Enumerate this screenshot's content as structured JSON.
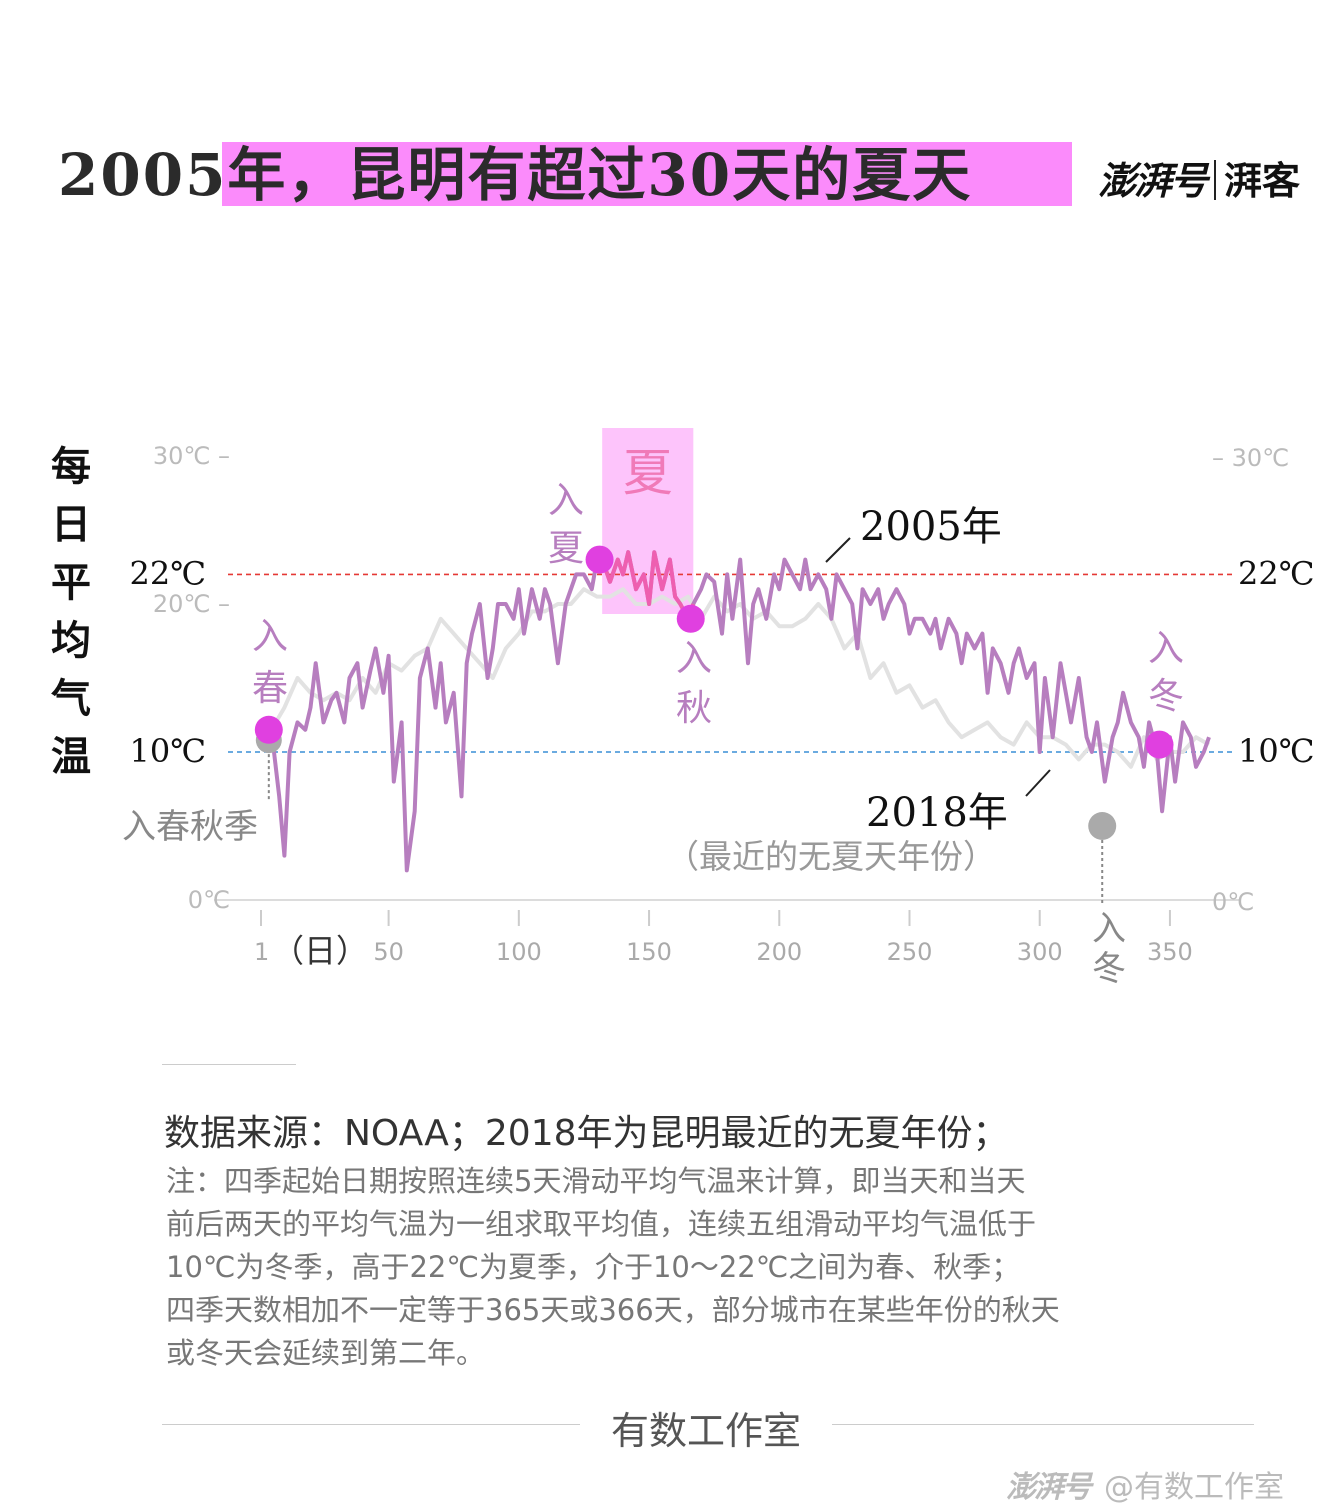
{
  "header": {
    "title": "2005年，昆明有超过30天的夏天",
    "brand_logo": "澎湃号",
    "brand_sub": "湃客"
  },
  "y_axis_label_chars": [
    "每",
    "日",
    "平",
    "均",
    "气",
    "温"
  ],
  "chart_data": {
    "type": "line",
    "title": "2005年，昆明有超过30天的夏天",
    "ylabel": "每日平均气温",
    "xlabel": "（日）",
    "xlim": [
      1,
      365
    ],
    "ylim": [
      0,
      30
    ],
    "x_ticks": [
      1,
      50,
      100,
      150,
      200,
      250,
      300,
      350
    ],
    "x_tick_labels": [
      "1",
      "50",
      "100",
      "150",
      "200",
      "250",
      "300",
      "350"
    ],
    "x_first_tick_suffix": "（日）",
    "y_ticks_left": [
      {
        "value": 30,
        "label": "30℃ –"
      },
      {
        "value": 20,
        "label": "20℃ –"
      },
      {
        "value": 0,
        "label": "0℃"
      }
    ],
    "y_ticks_right": [
      {
        "value": 30,
        "label": "– 30℃"
      },
      {
        "value": 0,
        "label": "0℃"
      }
    ],
    "thresholds": [
      {
        "value": 22,
        "label_left": "22℃",
        "label_right": "22℃",
        "color": "#e53935"
      },
      {
        "value": 10,
        "label_left": "10℃",
        "label_right": "10℃",
        "color": "#3a8fd6"
      }
    ],
    "summer_band": {
      "start": 132,
      "end": 167,
      "label": "夏",
      "color": "#fdc4fb"
    },
    "series": [
      {
        "name": "2018年",
        "sub_label": "（最近的无夏天年份）",
        "color": "#e2e2e2",
        "x": [
          1,
          5,
          10,
          15,
          20,
          25,
          30,
          35,
          40,
          45,
          50,
          55,
          60,
          65,
          70,
          75,
          80,
          85,
          90,
          95,
          100,
          105,
          110,
          115,
          120,
          125,
          130,
          135,
          140,
          145,
          150,
          155,
          160,
          165,
          170,
          175,
          180,
          185,
          190,
          195,
          200,
          205,
          210,
          215,
          220,
          225,
          230,
          235,
          240,
          245,
          250,
          255,
          260,
          265,
          270,
          275,
          280,
          285,
          290,
          295,
          300,
          305,
          310,
          315,
          320,
          325,
          330,
          335,
          340,
          345,
          350,
          355,
          360,
          365
        ],
        "y": [
          10.5,
          11.5,
          13,
          15,
          14,
          13.5,
          14,
          13.5,
          15,
          14,
          16,
          15.5,
          16.5,
          17,
          19,
          18,
          17,
          16,
          15,
          17,
          18,
          19.5,
          19.5,
          20,
          20,
          21,
          20.5,
          20.5,
          21,
          20,
          20,
          20.5,
          20,
          20.5,
          19,
          20.5,
          19.5,
          20,
          19,
          19.5,
          18.5,
          18.5,
          19,
          20,
          19,
          17,
          18,
          15,
          16,
          14,
          14.5,
          13,
          13.5,
          12,
          11,
          11.5,
          12,
          11,
          10.5,
          12,
          11,
          11,
          10.5,
          9.5,
          10.5,
          10.5,
          10,
          9,
          11,
          9.5,
          10,
          10,
          11,
          10.5
        ]
      },
      {
        "name": "2005年",
        "color": "#b77ebf",
        "x": [
          1,
          3,
          5,
          8,
          10,
          12,
          15,
          18,
          20,
          22,
          25,
          28,
          30,
          33,
          35,
          38,
          40,
          43,
          45,
          48,
          50,
          52,
          55,
          57,
          60,
          62,
          65,
          68,
          70,
          72,
          75,
          78,
          80,
          82,
          85,
          88,
          90,
          92,
          95,
          98,
          100,
          102,
          105,
          108,
          110,
          112,
          115,
          118,
          120,
          122,
          125,
          128,
          130,
          132,
          135,
          138,
          140,
          142,
          145,
          148,
          150,
          152,
          155,
          158,
          160,
          162,
          165,
          167,
          170,
          172,
          175,
          178,
          180,
          182,
          185,
          188,
          190,
          192,
          195,
          198,
          200,
          202,
          205,
          208,
          210,
          212,
          215,
          218,
          220,
          222,
          225,
          228,
          230,
          232,
          235,
          238,
          240,
          242,
          245,
          248,
          250,
          252,
          255,
          258,
          260,
          262,
          265,
          268,
          270,
          272,
          275,
          278,
          280,
          282,
          285,
          288,
          290,
          292,
          295,
          298,
          300,
          302,
          305,
          308,
          310,
          312,
          315,
          318,
          320,
          322,
          325,
          328,
          330,
          332,
          335,
          338,
          340,
          342,
          345,
          347,
          350,
          352,
          355,
          358,
          360,
          363,
          365
        ],
        "y": [
          11,
          10.5,
          11.5,
          7,
          3,
          10,
          12,
          11.5,
          13,
          16,
          12,
          13.5,
          14,
          12,
          15,
          16,
          13,
          15.5,
          17,
          14,
          16.5,
          8,
          12,
          2,
          6,
          15,
          17,
          13,
          16,
          12,
          14,
          7,
          16,
          18,
          20,
          15,
          17,
          20,
          20,
          19,
          21,
          18,
          21,
          19,
          21,
          20,
          16,
          20,
          21,
          22,
          22,
          21,
          23,
          23,
          21.5,
          23,
          22,
          23.5,
          21,
          22,
          20,
          23.5,
          21,
          23,
          20.5,
          20,
          19,
          20,
          21,
          22,
          21.5,
          18,
          22,
          19,
          23,
          16,
          20,
          21,
          19,
          22,
          21,
          23,
          22,
          21,
          23,
          21,
          22,
          21,
          19,
          22,
          21,
          20,
          17,
          21,
          20,
          21,
          19,
          20,
          21,
          20,
          18,
          19,
          19,
          18,
          19,
          17,
          19,
          18,
          16,
          18,
          17,
          18,
          14,
          17,
          16,
          14,
          16,
          17,
          15,
          16,
          10,
          15,
          11,
          16,
          14,
          12,
          15,
          11,
          10,
          12,
          8,
          11,
          12,
          14,
          12,
          11,
          9,
          12,
          10,
          6,
          11,
          8,
          12,
          11,
          9,
          10,
          11
        ]
      }
    ],
    "markers": [
      {
        "x": 4,
        "y": 11.5,
        "label": "入春",
        "color": "#e040e0"
      },
      {
        "x": 131,
        "y": 23,
        "label": "入夏",
        "color": "#e040e0"
      },
      {
        "x": 166,
        "y": 19,
        "label": "入秋",
        "color": "#e040e0"
      },
      {
        "x": 346,
        "y": 10.5,
        "label": "入冬",
        "color": "#e040e0"
      },
      {
        "x": 4,
        "y": 10.8,
        "label": "入春秋季",
        "color": "#aaaaaa"
      },
      {
        "x": 324,
        "y": 5,
        "label": "入冬",
        "color": "#aaaaaa"
      }
    ]
  },
  "source_text": "数据来源：NOAA；2018年为昆明最近的无夏年份；",
  "note_lines": [
    "注：四季起始日期按照连续5天滑动平均气温来计算，即当天和当天",
    "前后两天的平均气温为一组求取平均值，连续五组滑动平均气温低于",
    "10℃为冬季，高于22℃为夏季，介于10～22℃之间为春、秋季；",
    "四季天数相加不一定等于365天或366天，部分城市在某些年份的秋天",
    "或冬天会延续到第二年。"
  ],
  "footer_text": "有数工作室",
  "watermark": {
    "logo": "澎湃号",
    "handle": "@有数工作室"
  }
}
